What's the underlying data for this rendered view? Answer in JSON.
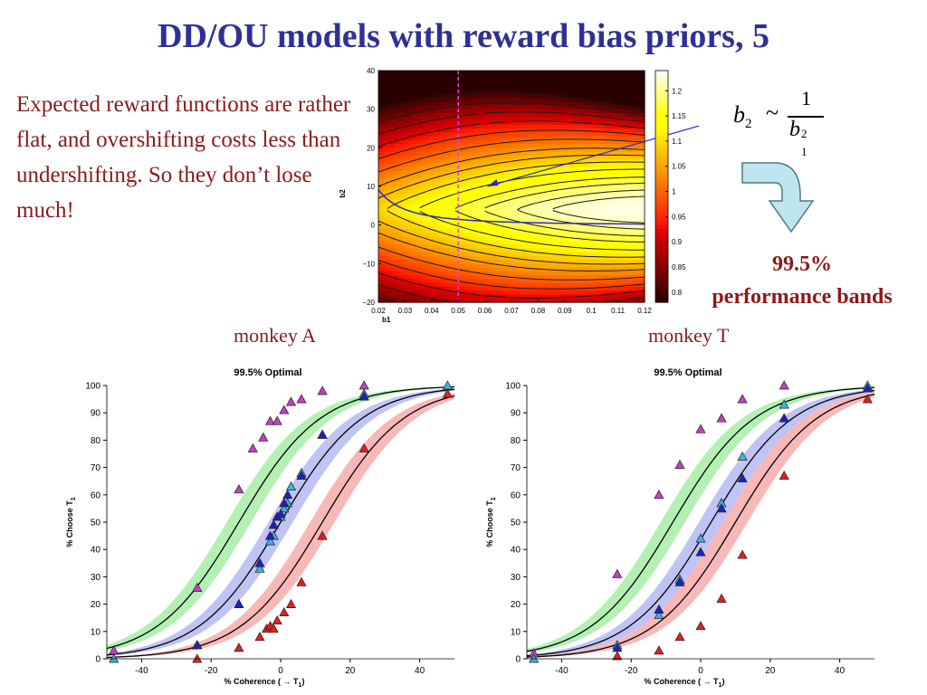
{
  "title": "DD/OU models with reward bias priors, 5",
  "paragraph": "Expected reward functions are rather flat, and overshifting costs less than undershifting. So they don’t lose much!",
  "formula": {
    "lhs": "b",
    "lhs_sub": "2",
    "rel": "~",
    "num": "1",
    "den": "b",
    "den_sub": "1",
    "den_sup": "2"
  },
  "band_label": {
    "line1": "99.5%",
    "line2": "performance bands"
  },
  "arrow_color": "#bfe6ee",
  "chart_data": [
    {
      "type": "heatmap",
      "xlabel": "b1",
      "ylabel": "b2",
      "xlim": [
        0.02,
        0.12
      ],
      "ylim": [
        -20,
        40
      ],
      "x_ticks": [
        "0.02",
        "0.03",
        "0.04",
        "0.05",
        "0.06",
        "0.07",
        "0.08",
        "0.09",
        "0.1",
        "0.11",
        "0.12"
      ],
      "y_ticks": [
        "40",
        "30",
        "20",
        "10",
        "0",
        "−10",
        "−20"
      ],
      "colorbar_ticks": [
        "1.2",
        "1.15",
        "1.1",
        "1.05",
        "1",
        "0.95",
        "0.9",
        "0.85",
        "0.8"
      ],
      "colorbar_range": [
        0.78,
        1.24
      ],
      "peak": {
        "b1": 0.12,
        "b2": 4
      },
      "vline_b1": 0.05,
      "prior_curve": "b2 = 0.05 / b1^2"
    },
    {
      "type": "scatter",
      "title": "99.5% Optimal",
      "subject": "monkey A",
      "xlabel": "% Coherence (   → T",
      "xlabel_sub": "1",
      "xlabel_close": ")",
      "ylabel": "% Choose T",
      "ylabel_sub": "1",
      "xlim": [
        -50,
        50
      ],
      "ylim": [
        0,
        100
      ],
      "x_ticks": [
        -40,
        -20,
        0,
        20,
        40
      ],
      "y_ticks": [
        0,
        10,
        20,
        30,
        40,
        50,
        60,
        70,
        80,
        90,
        100
      ],
      "series": [
        {
          "color": "#c040c0",
          "band": "#b4f0b4",
          "center": -12,
          "points": [
            [
              -48,
              3
            ],
            [
              -24,
              26
            ],
            [
              -12,
              62
            ],
            [
              -8,
              77
            ],
            [
              -5,
              81
            ],
            [
              -3,
              87
            ],
            [
              -1,
              87
            ],
            [
              1,
              91
            ],
            [
              3,
              94
            ],
            [
              6,
              95
            ],
            [
              12,
              98
            ],
            [
              24,
              100
            ]
          ]
        },
        {
          "color": "#40b0e0",
          "band": "#c0c4f4",
          "center": 0,
          "points": [
            [
              -48,
              0
            ],
            [
              -24,
              5
            ],
            [
              -12,
              20
            ],
            [
              -6,
              33
            ],
            [
              -3,
              43
            ],
            [
              -2,
              45
            ],
            [
              0,
              52
            ],
            [
              1,
              55
            ],
            [
              2,
              57
            ],
            [
              3,
              63
            ],
            [
              6,
              68
            ],
            [
              12,
              82
            ],
            [
              24,
              97
            ],
            [
              48,
              100
            ]
          ]
        },
        {
          "color": "#2020c0",
          "band": "#c0c4f4",
          "center": 0,
          "points": [
            [
              -24,
              5
            ],
            [
              -12,
              20
            ],
            [
              -6,
              35
            ],
            [
              -3,
              45
            ],
            [
              -2,
              49
            ],
            [
              -1,
              52
            ],
            [
              0,
              53
            ],
            [
              1,
              57
            ],
            [
              2,
              60
            ],
            [
              6,
              67
            ],
            [
              12,
              82
            ],
            [
              24,
              96
            ]
          ]
        },
        {
          "color": "#e02020",
          "band": "#f8b8b8",
          "center": 12,
          "points": [
            [
              -24,
              0
            ],
            [
              -12,
              4
            ],
            [
              -6,
              8
            ],
            [
              -4,
              11
            ],
            [
              -3,
              12
            ],
            [
              -2,
              11
            ],
            [
              -1,
              14
            ],
            [
              1,
              17
            ],
            [
              3,
              20
            ],
            [
              6,
              28
            ],
            [
              12,
              45
            ],
            [
              24,
              77
            ],
            [
              48,
              97
            ]
          ]
        }
      ]
    },
    {
      "type": "scatter",
      "title": "99.5% Optimal",
      "subject": "monkey T",
      "xlabel": "% Coherence (   → T",
      "xlabel_sub": "1",
      "xlabel_close": ")",
      "ylabel": "% Choose T",
      "ylabel_sub": "1",
      "xlim": [
        -50,
        50
      ],
      "ylim": [
        0,
        100
      ],
      "x_ticks": [
        -40,
        -20,
        0,
        20,
        40
      ],
      "y_ticks": [
        0,
        10,
        20,
        30,
        40,
        50,
        60,
        70,
        80,
        90,
        100
      ],
      "series": [
        {
          "color": "#c040c0",
          "band": "#b4f0b4",
          "center": -8,
          "points": [
            [
              -48,
              2
            ],
            [
              -24,
              31
            ],
            [
              -12,
              60
            ],
            [
              -6,
              71
            ],
            [
              0,
              84
            ],
            [
              6,
              88
            ],
            [
              12,
              95
            ],
            [
              24,
              100
            ]
          ]
        },
        {
          "color": "#40b0e0",
          "band": "#c0c4f4",
          "center": 3,
          "points": [
            [
              -48,
              0
            ],
            [
              -24,
              5
            ],
            [
              -12,
              16
            ],
            [
              -6,
              29
            ],
            [
              0,
              44
            ],
            [
              6,
              57
            ],
            [
              12,
              74
            ],
            [
              24,
              93
            ],
            [
              48,
              100
            ]
          ]
        },
        {
          "color": "#2020c0",
          "band": "#c0c4f4",
          "center": 3,
          "points": [
            [
              -24,
              4
            ],
            [
              -12,
              18
            ],
            [
              -6,
              28
            ],
            [
              0,
              39
            ],
            [
              6,
              55
            ],
            [
              12,
              66
            ],
            [
              24,
              88
            ],
            [
              48,
              99
            ]
          ]
        },
        {
          "color": "#e02020",
          "band": "#f8b8b8",
          "center": 10,
          "points": [
            [
              -24,
              1
            ],
            [
              -12,
              3
            ],
            [
              -6,
              8
            ],
            [
              0,
              12
            ],
            [
              6,
              22
            ],
            [
              12,
              38
            ],
            [
              24,
              67
            ],
            [
              48,
              95
            ]
          ]
        }
      ]
    }
  ]
}
